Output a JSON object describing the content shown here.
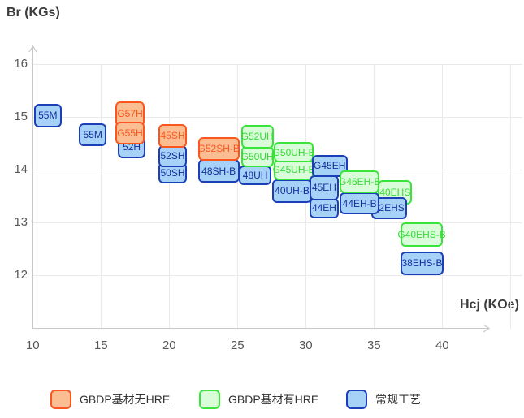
{
  "y_axis_title": "Br (KGs)",
  "x_axis_title": "Hcj (KOe)",
  "chart_data": {
    "type": "scatter",
    "title": "",
    "xlabel": "Hcj (KOe)",
    "ylabel": "Br (KGs)",
    "xlim": [
      10,
      45
    ],
    "ylim": [
      11,
      16.5
    ],
    "x_ticks": [
      10,
      15,
      20,
      25,
      30,
      35,
      40
    ],
    "y_ticks": [
      16,
      15,
      14,
      13,
      12
    ],
    "grid": true,
    "legend_position": "bottom",
    "series_colors": {
      "gbdp_no_hre": {
        "fill": "#fbbd92",
        "border": "#fa571e",
        "text": "#fa571e"
      },
      "gbdp_hre": {
        "fill": "#d9fcd9",
        "border": "#3be43b",
        "text": "#38da38"
      },
      "conventional": {
        "fill": "#a6d2f8",
        "border": "#1c3fb8",
        "text": "#14309c"
      }
    },
    "points": [
      {
        "label": "55M",
        "series": "conventional",
        "hcj": [
          10.1,
          12.1
        ],
        "br": [
          14.8,
          15.25
        ]
      },
      {
        "label": "55M",
        "series": "conventional",
        "hcj": [
          13.4,
          15.4
        ],
        "br": [
          14.45,
          14.88
        ]
      },
      {
        "label": "G57H",
        "series": "gbdp_no_hre",
        "hcj": [
          16.05,
          18.2
        ],
        "br": [
          14.82,
          15.29
        ]
      },
      {
        "label": "52H",
        "series": "conventional",
        "hcj": [
          16.25,
          18.25
        ],
        "br": [
          14.22,
          14.63
        ]
      },
      {
        "label": "G55H",
        "series": "gbdp_no_hre",
        "hcj": [
          16.05,
          18.2
        ],
        "br": [
          14.48,
          14.91
        ]
      },
      {
        "label": "50SH",
        "series": "conventional",
        "hcj": [
          19.2,
          21.3
        ],
        "br": [
          13.74,
          14.14
        ]
      },
      {
        "label": "52SH",
        "series": "conventional",
        "hcj": [
          19.2,
          21.3
        ],
        "br": [
          14.05,
          14.46
        ]
      },
      {
        "label": "45SH",
        "series": "gbdp_no_hre",
        "hcj": [
          19.2,
          21.3
        ],
        "br": [
          14.42,
          14.86
        ]
      },
      {
        "label": "48SH-B",
        "series": "conventional",
        "hcj": [
          22.1,
          25.15
        ],
        "br": [
          13.75,
          14.2
        ]
      },
      {
        "label": "G52SH-B",
        "series": "gbdp_no_hre",
        "hcj": [
          22.1,
          25.15
        ],
        "br": [
          14.17,
          14.62
        ]
      },
      {
        "label": "48UH",
        "series": "conventional",
        "hcj": [
          25.1,
          27.5
        ],
        "br": [
          13.71,
          14.08
        ]
      },
      {
        "label": "G50UH",
        "series": "gbdp_hre",
        "hcj": [
          25.25,
          27.65
        ],
        "br": [
          14.05,
          14.45
        ]
      },
      {
        "label": "G52UH",
        "series": "gbdp_hre",
        "hcj": [
          25.25,
          27.65
        ],
        "br": [
          14.4,
          14.85
        ]
      },
      {
        "label": "40UH-B",
        "series": "conventional",
        "hcj": [
          27.55,
          30.45
        ],
        "br": [
          13.37,
          13.82
        ]
      },
      {
        "label": "G45UH-B",
        "series": "gbdp_hre",
        "hcj": [
          27.65,
          30.6
        ],
        "br": [
          13.8,
          14.2
        ]
      },
      {
        "label": "G50UH-B",
        "series": "gbdp_hre",
        "hcj": [
          27.65,
          30.6
        ],
        "br": [
          14.14,
          14.52
        ]
      },
      {
        "label": "44EH",
        "series": "conventional",
        "hcj": [
          30.3,
          32.4
        ],
        "br": [
          13.08,
          13.46
        ]
      },
      {
        "label": "45EH",
        "series": "conventional",
        "hcj": [
          30.3,
          32.4
        ],
        "br": [
          13.42,
          13.89
        ]
      },
      {
        "label": "G45EH",
        "series": "conventional",
        "hcj": [
          30.45,
          33.05
        ],
        "br": [
          13.86,
          14.28
        ]
      },
      {
        "label": "40EHS",
        "series": "gbdp_hre",
        "hcj": [
          35.3,
          37.8
        ],
        "br": [
          13.34,
          13.8
        ]
      },
      {
        "label": "42EHS",
        "series": "conventional",
        "hcj": [
          34.8,
          37.4
        ],
        "br": [
          13.06,
          13.48
        ]
      },
      {
        "label": "44EH-B",
        "series": "conventional",
        "hcj": [
          32.5,
          35.4
        ],
        "br": [
          13.15,
          13.57
        ]
      },
      {
        "label": "G46EH-B",
        "series": "gbdp_hre",
        "hcj": [
          32.5,
          35.4
        ],
        "br": [
          13.55,
          13.98
        ]
      },
      {
        "label": "G40EHS-B",
        "series": "gbdp_hre",
        "hcj": [
          36.95,
          40.05
        ],
        "br": [
          12.54,
          13.0
        ]
      },
      {
        "label": "38EHS-B",
        "series": "conventional",
        "hcj": [
          36.95,
          40.1
        ],
        "br": [
          12.0,
          12.45
        ]
      }
    ]
  },
  "legend": {
    "items": [
      {
        "label": "GBDP基材无HRE",
        "series": "gbdp_no_hre"
      },
      {
        "label": "GBDP基材有HRE",
        "series": "gbdp_hre"
      },
      {
        "label": "常规工艺",
        "series": "conventional"
      }
    ]
  }
}
